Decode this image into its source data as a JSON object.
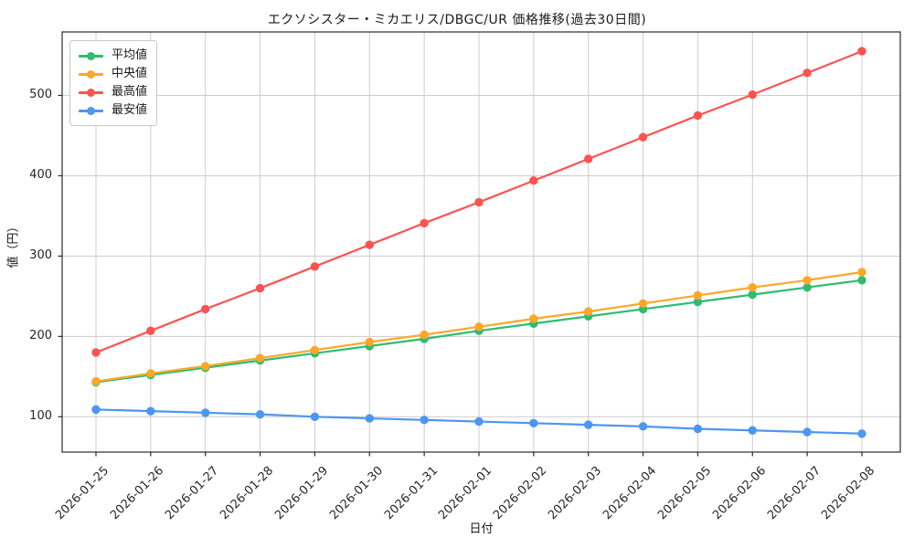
{
  "chart_data": {
    "type": "line",
    "title": "エクソシスター・ミカエリス/DBGC/UR 価格推移(過去30日間)",
    "xlabel": "日付",
    "ylabel": "値（円）",
    "x": [
      "2026-01-25",
      "2026-01-26",
      "2026-01-27",
      "2026-01-28",
      "2026-01-29",
      "2026-01-30",
      "2026-01-31",
      "2026-02-01",
      "2026-02-02",
      "2026-02-03",
      "2026-02-04",
      "2026-02-05",
      "2026-02-06",
      "2026-02-07",
      "2026-02-08"
    ],
    "series": [
      {
        "key": "average",
        "name": "平均値",
        "color": "#2dbd6e",
        "values": [
          143,
          152,
          161,
          170,
          179,
          188,
          197,
          207,
          216,
          225,
          234,
          243,
          252,
          261,
          270
        ]
      },
      {
        "key": "median",
        "name": "中央値",
        "color": "#ffa629",
        "values": [
          144,
          154,
          163,
          173,
          183,
          193,
          202,
          212,
          222,
          231,
          241,
          251,
          261,
          270,
          280
        ]
      },
      {
        "key": "highest",
        "name": "最高値",
        "color": "#fa5452",
        "values": [
          180,
          207,
          234,
          260,
          287,
          314,
          341,
          367,
          394,
          421,
          448,
          475,
          501,
          528,
          555
        ]
      },
      {
        "key": "lowest",
        "name": "最安値",
        "color": "#4d96f2",
        "values": [
          109,
          107,
          105,
          103,
          100,
          98,
          96,
          94,
          92,
          90,
          88,
          85,
          83,
          81,
          79
        ]
      }
    ],
    "ylim": [
      56,
      579
    ],
    "yticks": [
      100,
      200,
      300,
      400,
      500
    ],
    "grid": true,
    "grid_color": "#cccccc",
    "spine_color": "#2b2b2b",
    "legend_position": "upper left"
  }
}
